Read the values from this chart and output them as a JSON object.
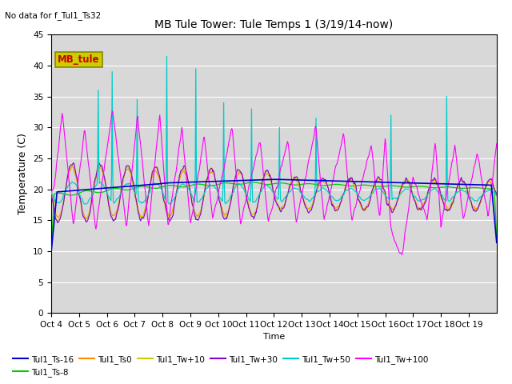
{
  "title": "MB Tule Tower: Tule Temps 1 (3/19/14-now)",
  "no_data_text": "No data for f_Tul1_Ts32",
  "xlabel": "Time",
  "ylabel": "Temperature (C)",
  "ylim": [
    0,
    45
  ],
  "yticks": [
    0,
    5,
    10,
    15,
    20,
    25,
    30,
    35,
    40,
    45
  ],
  "plot_bg_color": "#d8d8d8",
  "legend_label_box": "MB_tule",
  "legend_box_facecolor": "#cccc00",
  "legend_box_edgecolor": "#888800",
  "legend_box_text_color": "#cc0000",
  "series_colors": {
    "Tul1_Ts-16": "#0000cc",
    "Tul1_Ts-8": "#00cc00",
    "Tul1_Ts0": "#ff8800",
    "Tul1_Tw+10": "#cccc00",
    "Tul1_Tw+30": "#8800cc",
    "Tul1_Tw+50": "#00cccc",
    "Tul1_Tw+100": "#ff00ff"
  },
  "x_tick_labels": [
    "Oct 4",
    "Oct 5",
    "Oct 6",
    "Oct 7",
    "Oct 8",
    "Oct 9",
    "Oct 10",
    "Oct 11",
    "Oct 12",
    "Oct 13",
    "Oct 14",
    "Oct 15",
    "Oct 16",
    "Oct 17",
    "Oct 18",
    "Oct 19"
  ],
  "n_days": 16,
  "pts_per_day": 48
}
